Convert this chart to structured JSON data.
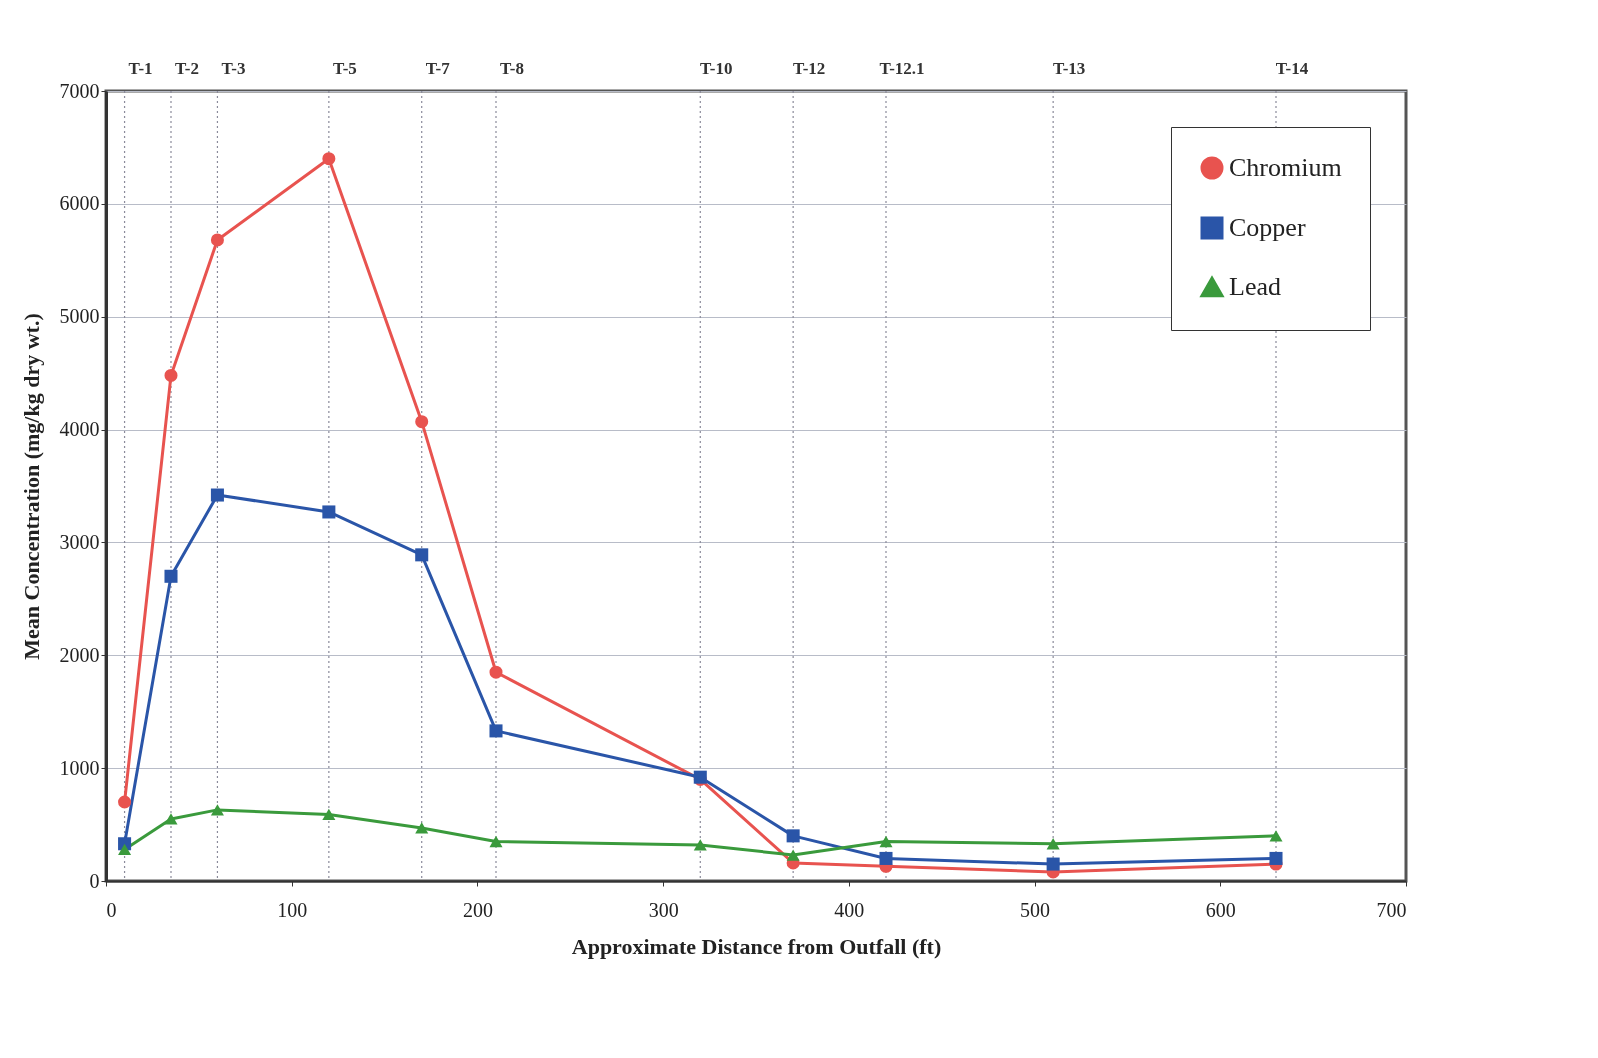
{
  "chart_data": {
    "type": "line",
    "xlabel": "Approximate Distance from Outfall (ft)",
    "ylabel": "Mean Concentration (mg/kg dry wt.)",
    "x": [
      10,
      35,
      60,
      120,
      170,
      210,
      320,
      370,
      420,
      510,
      630
    ],
    "series": [
      {
        "name": "Chromium",
        "color": "#e8534f",
        "marker": "circle",
        "values": [
          700,
          4480,
          5680,
          6400,
          4070,
          1850,
          900,
          160,
          130,
          80,
          150
        ]
      },
      {
        "name": "Copper",
        "color": "#2a55a8",
        "marker": "square",
        "values": [
          330,
          2700,
          3420,
          3270,
          2890,
          1330,
          920,
          400,
          200,
          150,
          200
        ]
      },
      {
        "name": "Lead",
        "color": "#3a9a3c",
        "marker": "triangle",
        "values": [
          280,
          550,
          630,
          590,
          470,
          350,
          320,
          230,
          350,
          330,
          400
        ]
      }
    ],
    "xlim": [
      0,
      700
    ],
    "xticks": [
      0,
      100,
      200,
      300,
      400,
      500,
      600,
      700
    ],
    "ylim": [
      0,
      7000
    ],
    "yticks": [
      0,
      1000,
      2000,
      3000,
      4000,
      5000,
      6000,
      7000
    ],
    "grid": "y",
    "legend": "top right",
    "line_style": "solid",
    "ref_lines": [
      {
        "axis": "x",
        "value": 10,
        "label": "T-1",
        "line_style": "dotted",
        "color": "#8a8a9a"
      },
      {
        "axis": "x",
        "value": 35,
        "label": "T-2",
        "line_style": "dotted",
        "color": "#8a8a9a"
      },
      {
        "axis": "x",
        "value": 60,
        "label": "T-3",
        "line_style": "dotted",
        "color": "#8a8a9a"
      },
      {
        "axis": "x",
        "value": 120,
        "label": "T-5",
        "line_style": "dotted",
        "color": "#8a8a9a"
      },
      {
        "axis": "x",
        "value": 170,
        "label": "T-7",
        "line_style": "dotted",
        "color": "#8a8a9a"
      },
      {
        "axis": "x",
        "value": 210,
        "label": "T-8",
        "line_style": "dotted",
        "color": "#8a8a9a"
      },
      {
        "axis": "x",
        "value": 320,
        "label": "T-10",
        "line_style": "dotted",
        "color": "#8a8a9a"
      },
      {
        "axis": "x",
        "value": 370,
        "label": "T-12",
        "line_style": "dotted",
        "color": "#8a8a9a"
      },
      {
        "axis": "x",
        "value": 420,
        "label": "T-12.1",
        "line_style": "dotted",
        "color": "#8a8a9a"
      },
      {
        "axis": "x",
        "value": 510,
        "label": "T-13",
        "line_style": "dotted",
        "color": "#8a8a9a"
      },
      {
        "axis": "x",
        "value": 630,
        "label": "T-14",
        "line_style": "dotted",
        "color": "#8a8a9a"
      }
    ]
  }
}
